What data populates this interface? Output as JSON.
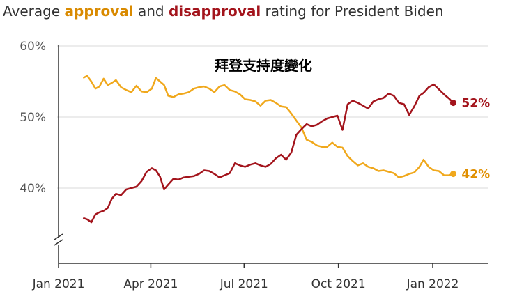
{
  "title": {
    "prefix": "Average",
    "approval_word": "approval",
    "middle": "and",
    "disapproval_word": "disapproval",
    "suffix": "rating for President Biden"
  },
  "overlay_text": "拜登支持度變化",
  "colors": {
    "approval": "#f0a81c",
    "disapproval": "#a3141c",
    "approval_label": "#e08f00",
    "disapproval_label": "#a3141c",
    "gridline": "#d9d9d9",
    "axis": "#333333"
  },
  "chart_data": {
    "type": "line",
    "title": "Average approval and disapproval rating for President Biden",
    "xlabel": "",
    "ylabel": "",
    "x_type": "date",
    "x_ticks": [
      {
        "date": "2021-01-01",
        "label": "Jan 2021"
      },
      {
        "date": "2021-04-01",
        "label": "Apr 2021"
      },
      {
        "date": "2021-07-01",
        "label": "Jul 2021"
      },
      {
        "date": "2021-10-01",
        "label": "Oct 2021"
      },
      {
        "date": "2022-01-01",
        "label": "Jan 2022"
      }
    ],
    "y_ticks": [
      40,
      50,
      60
    ],
    "y_tick_labels": [
      "40%",
      "50%",
      "60%"
    ],
    "ylim": [
      34,
      60
    ],
    "y_axis_break": true,
    "grid": true,
    "series": [
      {
        "name": "approval",
        "color": "#f0a81c",
        "end_label": "42%",
        "points": [
          [
            "2021-01-25",
            55.5
          ],
          [
            "2021-01-29",
            55.8
          ],
          [
            "2021-02-02",
            55.0
          ],
          [
            "2021-02-06",
            54.0
          ],
          [
            "2021-02-10",
            54.3
          ],
          [
            "2021-02-14",
            55.4
          ],
          [
            "2021-02-18",
            54.5
          ],
          [
            "2021-02-22",
            54.8
          ],
          [
            "2021-02-26",
            55.2
          ],
          [
            "2021-03-03",
            54.2
          ],
          [
            "2021-03-08",
            53.8
          ],
          [
            "2021-03-13",
            53.5
          ],
          [
            "2021-03-18",
            54.4
          ],
          [
            "2021-03-23",
            53.6
          ],
          [
            "2021-03-28",
            53.5
          ],
          [
            "2021-04-02",
            54.0
          ],
          [
            "2021-04-06",
            55.5
          ],
          [
            "2021-04-10",
            55.0
          ],
          [
            "2021-04-14",
            54.5
          ],
          [
            "2021-04-18",
            53.0
          ],
          [
            "2021-04-23",
            52.8
          ],
          [
            "2021-04-28",
            53.2
          ],
          [
            "2021-05-03",
            53.3
          ],
          [
            "2021-05-08",
            53.5
          ],
          [
            "2021-05-13",
            54.0
          ],
          [
            "2021-05-18",
            54.2
          ],
          [
            "2021-05-23",
            54.3
          ],
          [
            "2021-05-28",
            54.0
          ],
          [
            "2021-06-02",
            53.5
          ],
          [
            "2021-06-07",
            54.3
          ],
          [
            "2021-06-12",
            54.5
          ],
          [
            "2021-06-17",
            53.8
          ],
          [
            "2021-06-22",
            53.6
          ],
          [
            "2021-06-27",
            53.2
          ],
          [
            "2021-07-02",
            52.5
          ],
          [
            "2021-07-07",
            52.4
          ],
          [
            "2021-07-12",
            52.2
          ],
          [
            "2021-07-17",
            51.6
          ],
          [
            "2021-07-22",
            52.3
          ],
          [
            "2021-07-27",
            52.4
          ],
          [
            "2021-08-01",
            52.0
          ],
          [
            "2021-08-06",
            51.5
          ],
          [
            "2021-08-11",
            51.4
          ],
          [
            "2021-08-16",
            50.5
          ],
          [
            "2021-08-21",
            49.5
          ],
          [
            "2021-08-26",
            48.5
          ],
          [
            "2021-08-31",
            46.8
          ],
          [
            "2021-09-05",
            46.5
          ],
          [
            "2021-09-10",
            46.0
          ],
          [
            "2021-09-15",
            45.8
          ],
          [
            "2021-09-20",
            45.8
          ],
          [
            "2021-09-25",
            46.4
          ],
          [
            "2021-09-30",
            45.8
          ],
          [
            "2021-10-05",
            45.7
          ],
          [
            "2021-10-10",
            44.5
          ],
          [
            "2021-10-15",
            43.8
          ],
          [
            "2021-10-20",
            43.2
          ],
          [
            "2021-10-25",
            43.5
          ],
          [
            "2021-10-30",
            43.0
          ],
          [
            "2021-11-04",
            42.8
          ],
          [
            "2021-11-09",
            42.4
          ],
          [
            "2021-11-14",
            42.5
          ],
          [
            "2021-11-19",
            42.3
          ],
          [
            "2021-11-24",
            42.1
          ],
          [
            "2021-11-29",
            41.5
          ],
          [
            "2021-12-04",
            41.7
          ],
          [
            "2021-12-09",
            42.0
          ],
          [
            "2021-12-14",
            42.2
          ],
          [
            "2021-12-19",
            43.0
          ],
          [
            "2021-12-23",
            44.0
          ],
          [
            "2021-12-28",
            43.0
          ],
          [
            "2022-01-02",
            42.5
          ],
          [
            "2022-01-07",
            42.4
          ],
          [
            "2022-01-12",
            41.8
          ],
          [
            "2022-01-17",
            41.8
          ],
          [
            "2022-01-21",
            42.0
          ]
        ]
      },
      {
        "name": "disapproval",
        "color": "#a3141c",
        "end_label": "52%",
        "points": [
          [
            "2021-01-25",
            35.8
          ],
          [
            "2021-01-29",
            35.6
          ],
          [
            "2021-02-02",
            35.2
          ],
          [
            "2021-02-06",
            36.3
          ],
          [
            "2021-02-10",
            36.6
          ],
          [
            "2021-02-14",
            36.8
          ],
          [
            "2021-02-18",
            37.2
          ],
          [
            "2021-02-22",
            38.5
          ],
          [
            "2021-02-26",
            39.2
          ],
          [
            "2021-03-03",
            39.0
          ],
          [
            "2021-03-08",
            39.8
          ],
          [
            "2021-03-13",
            40.0
          ],
          [
            "2021-03-18",
            40.2
          ],
          [
            "2021-03-23",
            41.0
          ],
          [
            "2021-03-28",
            42.3
          ],
          [
            "2021-04-02",
            42.8
          ],
          [
            "2021-04-06",
            42.5
          ],
          [
            "2021-04-10",
            41.6
          ],
          [
            "2021-04-14",
            39.8
          ],
          [
            "2021-04-18",
            40.5
          ],
          [
            "2021-04-23",
            41.3
          ],
          [
            "2021-04-28",
            41.2
          ],
          [
            "2021-05-03",
            41.5
          ],
          [
            "2021-05-08",
            41.6
          ],
          [
            "2021-05-13",
            41.7
          ],
          [
            "2021-05-18",
            42.0
          ],
          [
            "2021-05-23",
            42.5
          ],
          [
            "2021-05-28",
            42.4
          ],
          [
            "2021-06-02",
            42.0
          ],
          [
            "2021-06-07",
            41.5
          ],
          [
            "2021-06-12",
            41.8
          ],
          [
            "2021-06-17",
            42.1
          ],
          [
            "2021-06-22",
            43.5
          ],
          [
            "2021-06-27",
            43.2
          ],
          [
            "2021-07-02",
            43.0
          ],
          [
            "2021-07-07",
            43.3
          ],
          [
            "2021-07-12",
            43.5
          ],
          [
            "2021-07-17",
            43.2
          ],
          [
            "2021-07-22",
            43.0
          ],
          [
            "2021-07-27",
            43.4
          ],
          [
            "2021-08-01",
            44.2
          ],
          [
            "2021-08-06",
            44.7
          ],
          [
            "2021-08-11",
            44.0
          ],
          [
            "2021-08-16",
            45.0
          ],
          [
            "2021-08-21",
            47.5
          ],
          [
            "2021-08-26",
            48.3
          ],
          [
            "2021-08-31",
            49.0
          ],
          [
            "2021-09-05",
            48.7
          ],
          [
            "2021-09-10",
            48.9
          ],
          [
            "2021-09-15",
            49.4
          ],
          [
            "2021-09-20",
            49.8
          ],
          [
            "2021-09-25",
            50.0
          ],
          [
            "2021-09-30",
            50.2
          ],
          [
            "2021-10-05",
            48.2
          ],
          [
            "2021-10-10",
            51.8
          ],
          [
            "2021-10-15",
            52.3
          ],
          [
            "2021-10-20",
            52.0
          ],
          [
            "2021-10-25",
            51.6
          ],
          [
            "2021-10-30",
            51.2
          ],
          [
            "2021-11-04",
            52.2
          ],
          [
            "2021-11-09",
            52.5
          ],
          [
            "2021-11-14",
            52.7
          ],
          [
            "2021-11-19",
            53.3
          ],
          [
            "2021-11-24",
            53.0
          ],
          [
            "2021-11-29",
            52.0
          ],
          [
            "2021-12-04",
            51.8
          ],
          [
            "2021-12-09",
            50.3
          ],
          [
            "2021-12-14",
            51.5
          ],
          [
            "2021-12-19",
            53.0
          ],
          [
            "2021-12-23",
            53.4
          ],
          [
            "2021-12-28",
            54.2
          ],
          [
            "2022-01-02",
            54.6
          ],
          [
            "2022-01-07",
            53.9
          ],
          [
            "2022-01-12",
            53.2
          ],
          [
            "2022-01-17",
            52.6
          ],
          [
            "2022-01-21",
            52.0
          ]
        ]
      }
    ]
  }
}
